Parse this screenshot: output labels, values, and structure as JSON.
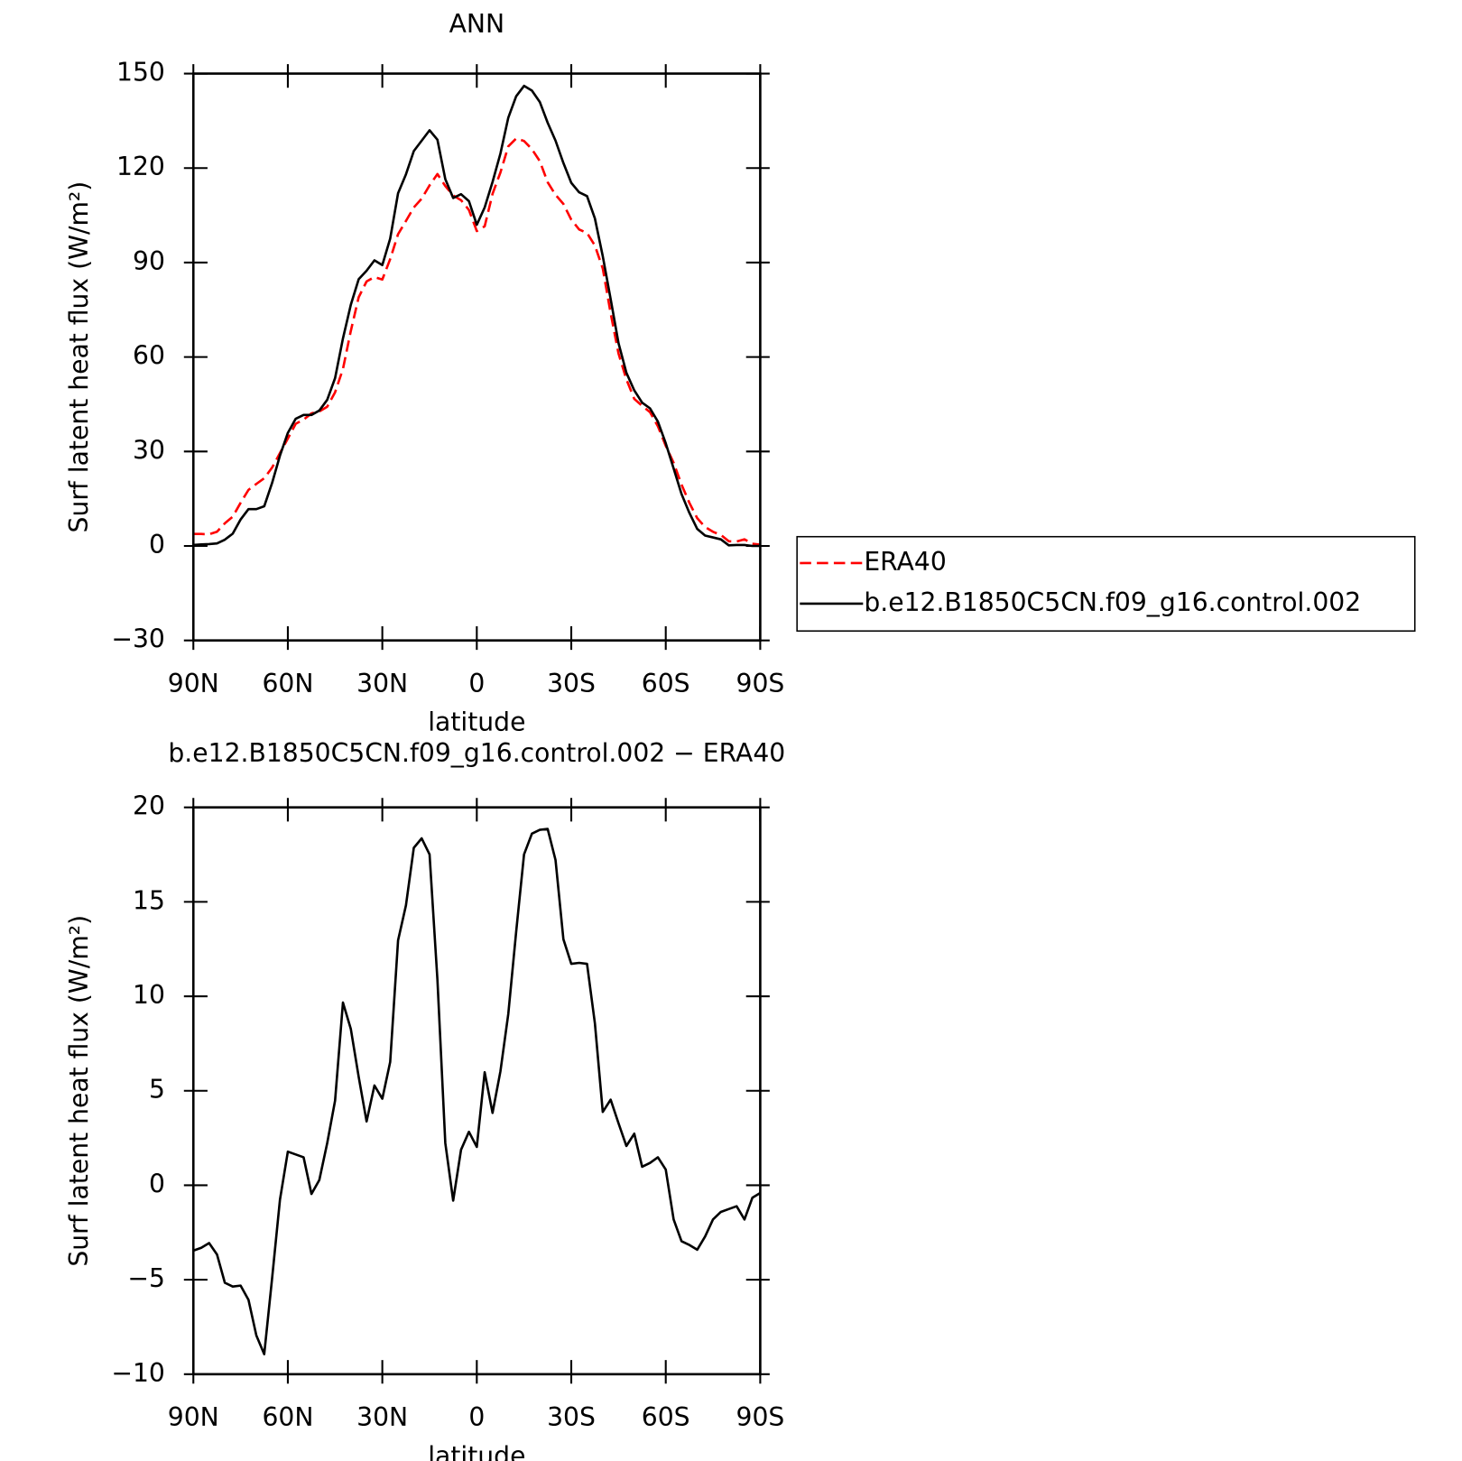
{
  "chart_data": [
    {
      "type": "line",
      "title": "ANN",
      "xlabel": "latitude",
      "ylabel": "Surf latent heat flux (W/m²)",
      "x": [
        90,
        87.5,
        85,
        82.5,
        80,
        77.5,
        75,
        72.5,
        70,
        67.5,
        65,
        62.5,
        60,
        57.5,
        55,
        52.5,
        50,
        47.5,
        45,
        42.5,
        40,
        37.5,
        35,
        32.5,
        30,
        27.5,
        25,
        22.5,
        20,
        17.5,
        15,
        12.5,
        10,
        7.5,
        5,
        2.5,
        0,
        -2.5,
        -5,
        -7.5,
        -10,
        -12.5,
        -15,
        -17.5,
        -20,
        -22.5,
        -25,
        -27.5,
        -30,
        -32.5,
        -35,
        -37.5,
        -40,
        -42.5,
        -45,
        -47.5,
        -50,
        -52.5,
        -55,
        -57.5,
        -60,
        -62.5,
        -65,
        -67.5,
        -70,
        -72.5,
        -75,
        -77.5,
        -80,
        -82.5,
        -85,
        -87.5,
        -90
      ],
      "series": [
        {
          "name": "ERA40",
          "color": "#ff0000",
          "style": "dashed",
          "values": [
            3.8,
            3.8,
            3.7,
            4.5,
            7.2,
            9.3,
            13.7,
            17.8,
            19.7,
            21.5,
            24.9,
            29.5,
            34.1,
            38.8,
            40.1,
            42.1,
            42.7,
            44.2,
            48.8,
            56.2,
            68.3,
            79,
            84,
            85.4,
            84.6,
            91.1,
            99,
            103.2,
            107.5,
            110.3,
            114.5,
            118.1,
            114.3,
            111.3,
            109.8,
            106.7,
            100,
            101.5,
            111.8,
            118.6,
            126.9,
            129.4,
            128.6,
            126,
            122.2,
            115.5,
            111.5,
            108.6,
            103.6,
            100.5,
            99.4,
            95.4,
            88.1,
            73.9,
            61.1,
            52.9,
            46.7,
            44.5,
            42.5,
            38,
            31.8,
            26.4,
            19.5,
            13.7,
            8.8,
            6,
            4.5,
            3.5,
            1.5,
            1.4,
            2.1,
            0.7,
            0.4
          ]
        },
        {
          "name": "b.e12.B1850C5CN.f09_g16.control.002",
          "color": "#000000",
          "style": "solid",
          "values": [
            0.3,
            0.5,
            0.6,
            0.8,
            2,
            3.9,
            8.4,
            11.7,
            11.7,
            12.6,
            20,
            28.7,
            35.9,
            40.4,
            41.6,
            41.6,
            43,
            46.4,
            53.3,
            65.9,
            76.6,
            84.7,
            87.4,
            90.7,
            89.2,
            97.6,
            112,
            118,
            125.4,
            128.7,
            132,
            129,
            116.5,
            110.5,
            111.7,
            109.5,
            102,
            107.5,
            115.6,
            124.6,
            136,
            142.8,
            146.1,
            144.6,
            141,
            134.4,
            128.7,
            121.6,
            115.3,
            112.3,
            111.1,
            104,
            92,
            78.4,
            64.4,
            55,
            49.4,
            45.5,
            43.7,
            39.5,
            32.6,
            24.6,
            16.5,
            10.5,
            5.4,
            3.3,
            2.7,
            2.1,
            0.2,
            0.3,
            0.3,
            0,
            0
          ]
        }
      ],
      "xlim": [
        90,
        -90
      ],
      "xticks": [
        {
          "value": 90,
          "label": "90N"
        },
        {
          "value": 60,
          "label": "60N"
        },
        {
          "value": 30,
          "label": "30N"
        },
        0,
        {
          "value": -30,
          "label": "30S"
        },
        {
          "value": -60,
          "label": "60S"
        },
        {
          "value": -90,
          "label": "90S"
        }
      ],
      "ylim": [
        -30,
        150
      ],
      "yticks": [
        {
          "value": -30,
          "label": "−30"
        },
        0,
        30,
        60,
        90,
        120,
        150
      ],
      "legend": "right"
    },
    {
      "type": "line",
      "title": "b.e12.B1850C5CN.f09_g16.control.002 − ERA40",
      "xlabel": "latitude",
      "ylabel": "Surf latent heat flux (W/m²)",
      "x": [
        90,
        87.5,
        85,
        82.5,
        80,
        77.5,
        75,
        72.5,
        70,
        67.5,
        65,
        62.5,
        60,
        57.5,
        55,
        52.5,
        50,
        47.5,
        45,
        42.5,
        40,
        37.5,
        35,
        32.5,
        30,
        27.5,
        25,
        22.5,
        20,
        17.5,
        15,
        12.5,
        10,
        7.5,
        5,
        2.5,
        0,
        -2.5,
        -5,
        -7.5,
        -10,
        -12.5,
        -15,
        -17.5,
        -20,
        -22.5,
        -25,
        -27.5,
        -30,
        -32.5,
        -35,
        -37.5,
        -40,
        -42.5,
        -45,
        -47.5,
        -50,
        -52.5,
        -55,
        -57.5,
        -60,
        -62.5,
        -65,
        -67.5,
        -70,
        -72.5,
        -75,
        -77.5,
        -80,
        -82.5,
        -85,
        -87.5,
        -90
      ],
      "series": [
        {
          "color": "#000000",
          "style": "solid",
          "values": [
            -3.46,
            -3.31,
            -3.06,
            -3.66,
            -5.16,
            -5.36,
            -5.31,
            -6.06,
            -7.95,
            -8.94,
            -4.93,
            -0.76,
            1.78,
            1.63,
            1.48,
            -0.46,
            0.28,
            2.23,
            4.48,
            9.67,
            8.27,
            5.73,
            3.38,
            5.28,
            4.58,
            6.53,
            12.96,
            14.81,
            17.86,
            18.36,
            17.51,
            10.87,
            2.23,
            -0.81,
            1.88,
            2.83,
            2.03,
            5.98,
            3.83,
            6.03,
            9.07,
            13.42,
            17.51,
            18.61,
            18.81,
            18.86,
            17.21,
            13.02,
            11.72,
            11.77,
            11.72,
            8.57,
            3.88,
            4.53,
            3.28,
            2.08,
            2.73,
            0.98,
            1.18,
            1.48,
            0.83,
            -1.81,
            -2.96,
            -3.16,
            -3.41,
            -2.71,
            -1.81,
            -1.41,
            -1.26,
            -1.11,
            -1.81,
            -0.66,
            -0.41
          ]
        }
      ],
      "xlim": [
        90,
        -90
      ],
      "xticks": [
        {
          "value": 90,
          "label": "90N"
        },
        {
          "value": 60,
          "label": "60N"
        },
        {
          "value": 30,
          "label": "30N"
        },
        0,
        {
          "value": -30,
          "label": "30S"
        },
        {
          "value": -60,
          "label": "60S"
        },
        {
          "value": -90,
          "label": "90S"
        }
      ],
      "ylim": [
        -10,
        20
      ],
      "yticks": [
        {
          "value": -10,
          "label": "−10"
        },
        {
          "value": -5,
          "label": "−5"
        },
        0,
        5,
        10,
        15,
        20
      ]
    }
  ]
}
